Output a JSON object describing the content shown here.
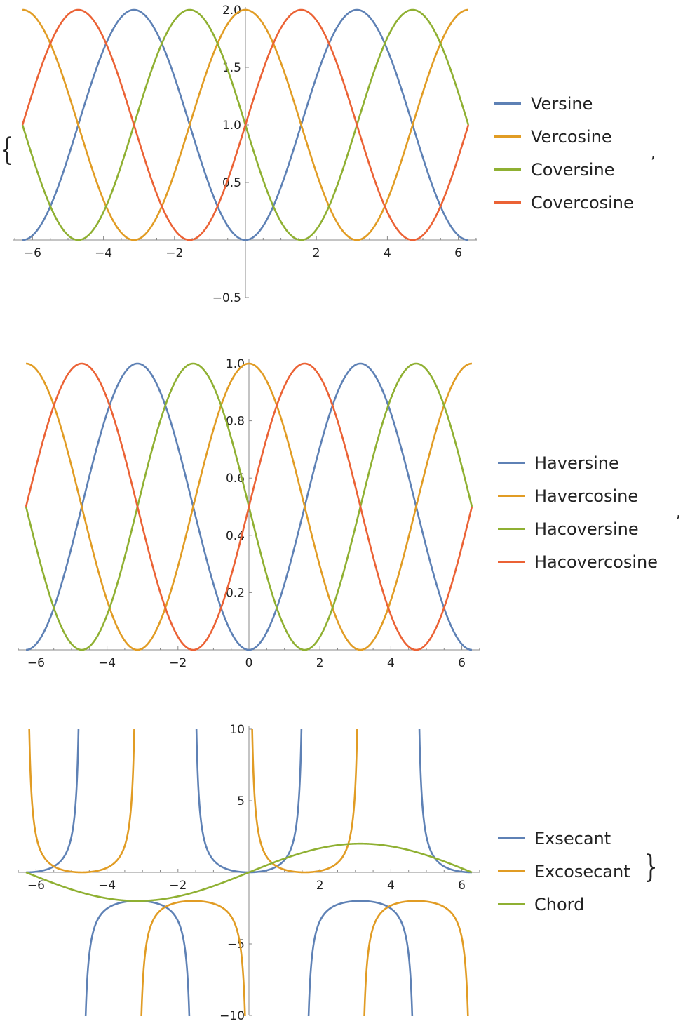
{
  "colors": {
    "blue": "#5E81B5",
    "orange": "#E19C24",
    "green": "#8FB032",
    "red": "#EB6235",
    "axis": "#888888"
  },
  "punctuation": {
    "open_brace": "{",
    "comma_1": ",",
    "comma_2": ",",
    "close_brace": "}"
  },
  "chart_data": [
    {
      "type": "line",
      "xlim": [
        -6.2832,
        6.2832
      ],
      "ylim": [
        -0.5,
        2
      ],
      "x_ticks": [
        -6,
        -4,
        -2,
        2,
        4,
        6
      ],
      "x_tick_labels": [
        "−6",
        "−4",
        "−2",
        "2",
        "4",
        "6"
      ],
      "y_ticks": [
        -0.5,
        0.5,
        1.0,
        1.5,
        2.0
      ],
      "y_tick_labels": [
        "−0.5",
        "0.5",
        "1.0",
        "1.5",
        "2.0"
      ],
      "legend_placement": "right",
      "grid": false,
      "series": [
        {
          "name": "Versine",
          "expr": "1-cos(x)",
          "color": "#5E81B5"
        },
        {
          "name": "Vercosine",
          "expr": "1+cos(x)",
          "color": "#E19C24"
        },
        {
          "name": "Coversine",
          "expr": "1-sin(x)",
          "color": "#8FB032"
        },
        {
          "name": "Covercosine",
          "expr": "1+sin(x)",
          "color": "#EB6235"
        }
      ]
    },
    {
      "type": "line",
      "xlim": [
        -6.2832,
        6.2832
      ],
      "ylim": [
        0,
        1
      ],
      "x_ticks": [
        -6,
        -4,
        -2,
        0,
        2,
        4,
        6
      ],
      "x_tick_labels": [
        "−6",
        "−4",
        "−2",
        "0",
        "2",
        "4",
        "6"
      ],
      "y_ticks": [
        0.2,
        0.4,
        0.6,
        0.8,
        1.0
      ],
      "y_tick_labels": [
        "0.2",
        "0.4",
        "0.6",
        "0.8",
        "1.0"
      ],
      "legend_placement": "right",
      "grid": false,
      "series": [
        {
          "name": "Haversine",
          "expr": "(1-cos(x))/2",
          "color": "#5E81B5"
        },
        {
          "name": "Havercosine",
          "expr": "(1+cos(x))/2",
          "color": "#E19C24"
        },
        {
          "name": "Hacoversine",
          "expr": "(1-sin(x))/2",
          "color": "#8FB032"
        },
        {
          "name": "Hacovercosine",
          "expr": "(1+sin(x))/2",
          "color": "#EB6235"
        }
      ]
    },
    {
      "type": "line",
      "xlim": [
        -6.2832,
        6.2832
      ],
      "ylim": [
        -10,
        10
      ],
      "x_ticks": [
        -6,
        -4,
        -2,
        2,
        4,
        6
      ],
      "x_tick_labels": [
        "−6",
        "−4",
        "−2",
        "2",
        "4",
        "6"
      ],
      "y_ticks": [
        -10,
        -5,
        5,
        10
      ],
      "y_tick_labels": [
        "−10",
        "−5",
        "5",
        "10"
      ],
      "legend_placement": "right",
      "grid": false,
      "series": [
        {
          "name": "Exsecant",
          "expr": "1/cos(x)-1",
          "color": "#5E81B5"
        },
        {
          "name": "Excosecant",
          "expr": "1/sin(x)-1",
          "color": "#E19C24"
        },
        {
          "name": "Chord",
          "expr": "2*sin(x/2)",
          "color": "#8FB032"
        }
      ]
    }
  ]
}
